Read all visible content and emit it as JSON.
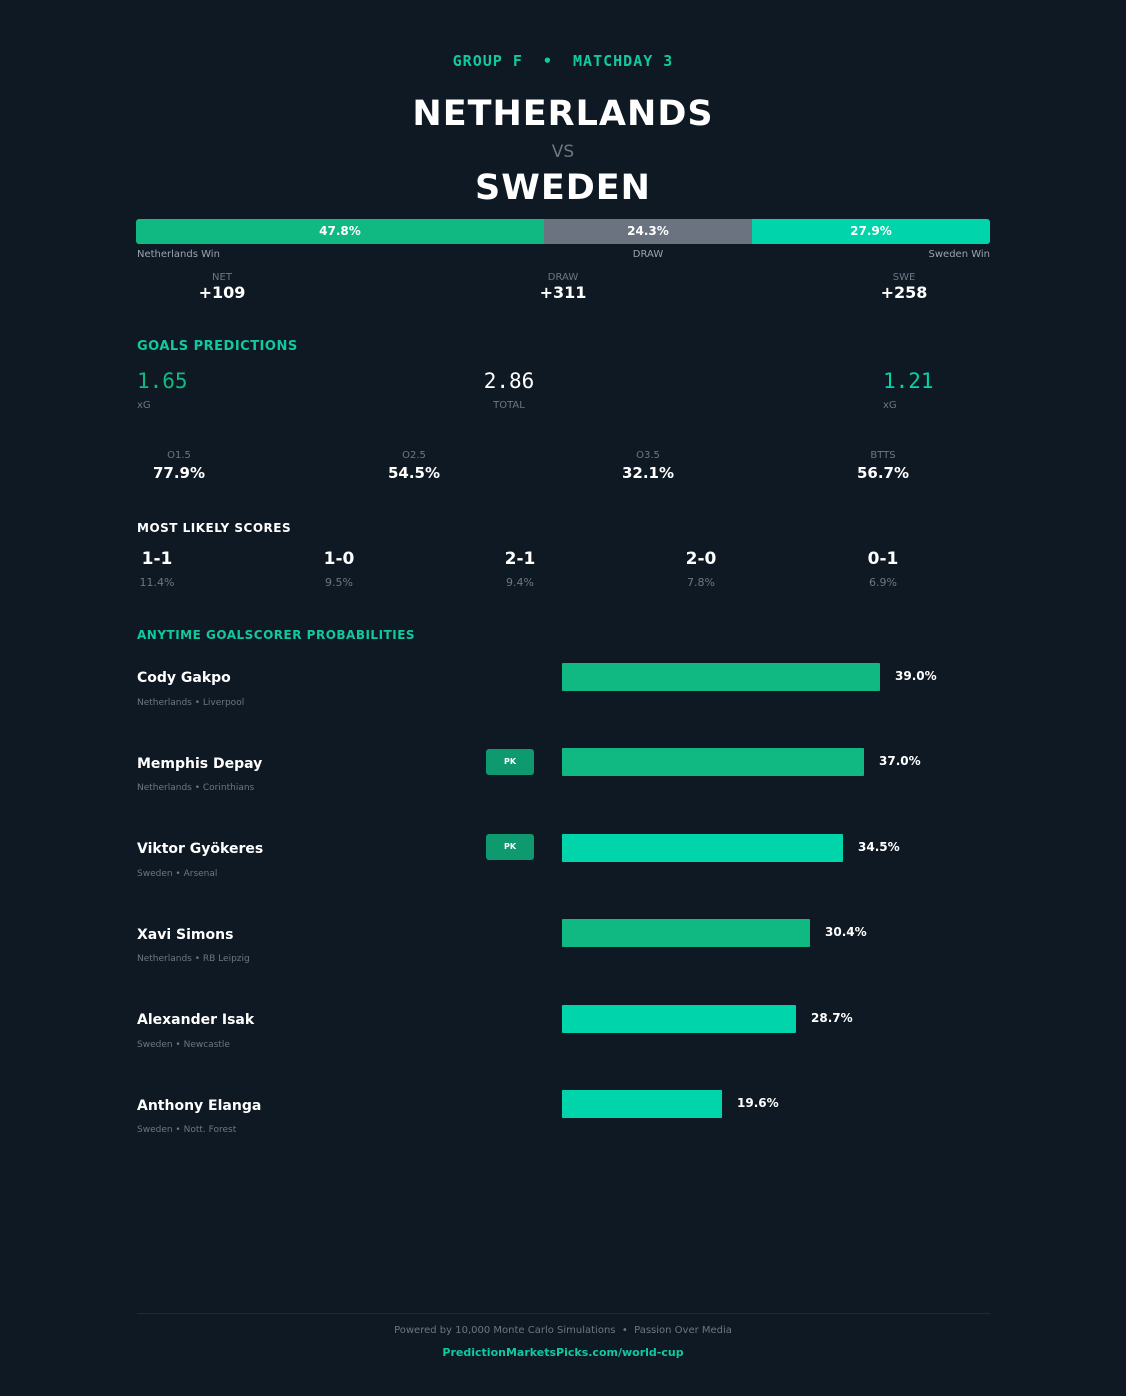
{
  "header": {
    "matchday": "GROUP F  •  MATCHDAY 3",
    "home_team": "NETHERLANDS",
    "vs": "VS",
    "away_team": "SWEDEN"
  },
  "outcome": {
    "home_pct": 47.8,
    "draw_pct": 24.3,
    "away_pct": 27.9,
    "home_label": "47.8%",
    "draw_label": "24.3%",
    "away_label": "27.9%",
    "home_caption": "Netherlands Win",
    "draw_caption": "DRAW",
    "away_caption": "Sweden Win",
    "colors": {
      "home": "#10b981",
      "draw": "#6b7280",
      "away": "#00d4aa"
    }
  },
  "odds": [
    {
      "key": "NET",
      "value": "+109"
    },
    {
      "key": "DRAW",
      "value": "+311"
    },
    {
      "key": "SWE",
      "value": "+258"
    }
  ],
  "goals": {
    "title": "GOALS PREDICTIONS",
    "home_xg": "1.65",
    "home_xg_label": "xG",
    "total": "2.86",
    "total_label": "TOTAL",
    "away_xg": "1.21",
    "away_xg_label": "xG",
    "markets": [
      {
        "key": "O1.5",
        "value": "77.9%"
      },
      {
        "key": "O2.5",
        "value": "54.5%"
      },
      {
        "key": "O3.5",
        "value": "32.1%"
      },
      {
        "key": "BTTS",
        "value": "56.7%"
      }
    ]
  },
  "scores": {
    "title": "MOST LIKELY SCORES",
    "items": [
      {
        "score": "1-1",
        "prob": "11.4%"
      },
      {
        "score": "1-0",
        "prob": "9.5%"
      },
      {
        "score": "2-1",
        "prob": "9.4%"
      },
      {
        "score": "2-0",
        "prob": "7.8%"
      },
      {
        "score": "0-1",
        "prob": "6.9%"
      }
    ]
  },
  "scorers": {
    "title": "ANYTIME GOALSCORER PROBABILITIES",
    "pk_label": "PK",
    "players": [
      {
        "name": "Cody Gakpo",
        "meta": "Netherlands  •  Liverpool",
        "pct": 39.0,
        "pct_label": "39.0%",
        "pk": false,
        "team": "home"
      },
      {
        "name": "Memphis Depay",
        "meta": "Netherlands  •  Corinthians",
        "pct": 37.0,
        "pct_label": "37.0%",
        "pk": true,
        "team": "home"
      },
      {
        "name": "Viktor Gyökeres",
        "meta": "Sweden  •  Arsenal",
        "pct": 34.5,
        "pct_label": "34.5%",
        "pk": true,
        "team": "away"
      },
      {
        "name": "Xavi Simons",
        "meta": "Netherlands  •  RB Leipzig",
        "pct": 30.4,
        "pct_label": "30.4%",
        "pk": false,
        "team": "home"
      },
      {
        "name": "Alexander Isak",
        "meta": "Sweden  •  Newcastle",
        "pct": 28.7,
        "pct_label": "28.7%",
        "pk": false,
        "team": "away"
      },
      {
        "name": "Anthony Elanga",
        "meta": "Sweden  •  Nott. Forest",
        "pct": 19.6,
        "pct_label": "19.6%",
        "pk": false,
        "team": "away"
      }
    ]
  },
  "footer": {
    "text": "Powered by 10,000 Monte Carlo Simulations  •  Passion Over Media",
    "link": "PredictionMarketsPicks.com/world-cup"
  }
}
